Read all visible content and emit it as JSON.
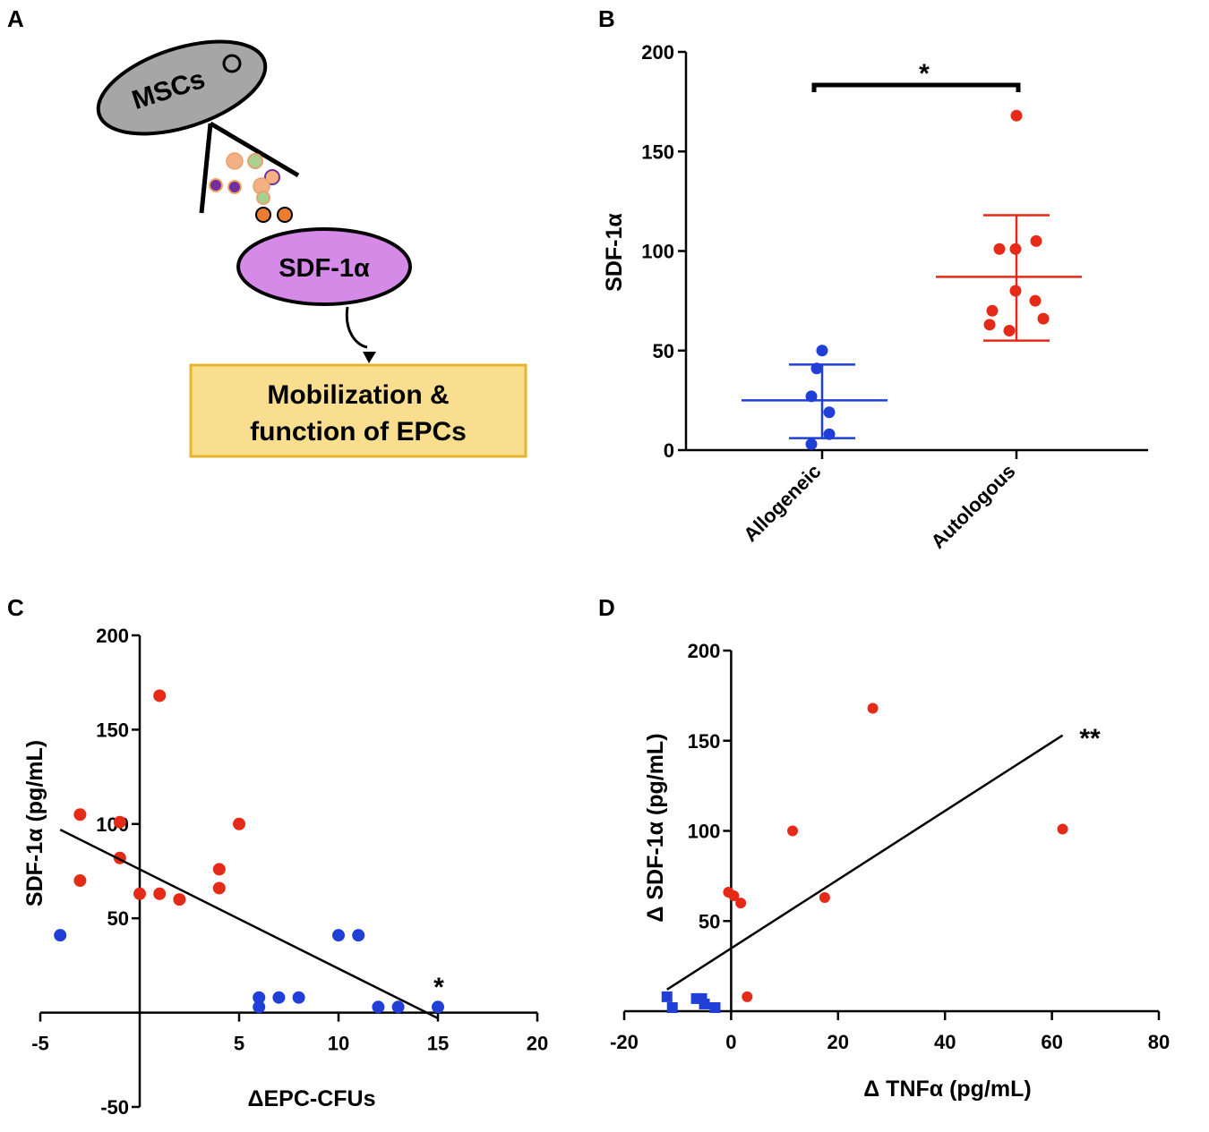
{
  "panels": {
    "a": {
      "letter": "A",
      "msc_label": "MSCs",
      "sdf_label": "SDF-1α",
      "box_line1": "Mobilization &",
      "box_line2": "function of EPCs",
      "colors": {
        "msc_fill": "#a6a6a6",
        "sdf_fill": "#d58ae8",
        "box_fill": "#f9de8f",
        "box_border": "#e5b52f"
      }
    },
    "b": {
      "letter": "B"
    },
    "c": {
      "letter": "C"
    },
    "d": {
      "letter": "D"
    }
  },
  "chart_data": [
    {
      "id": "B",
      "type": "scatter",
      "title": "",
      "xlabel": "",
      "ylabel": "SDF-1α",
      "categories": [
        "Allogeneic",
        "Autologous"
      ],
      "ylim": [
        0,
        200
      ],
      "yticks": [
        0,
        50,
        100,
        150,
        200
      ],
      "series": [
        {
          "name": "Allogeneic",
          "color": "#1f3fd6",
          "values": [
            50,
            41,
            27,
            19,
            8,
            3
          ],
          "mean": 25,
          "sd_low": 6,
          "sd_high": 43
        },
        {
          "name": "Autologous",
          "color": "#e52b17",
          "values": [
            168,
            105,
            101,
            101,
            80,
            75,
            70,
            66,
            63,
            60
          ],
          "mean": 87,
          "sd_low": 55,
          "sd_high": 118
        }
      ],
      "significance": "*"
    },
    {
      "id": "C",
      "type": "scatter",
      "title": "",
      "xlabel": "ΔEPC-CFUs",
      "ylabel": "SDF-1α (pg/mL)",
      "xlim": [
        -5,
        20
      ],
      "ylim": [
        -50,
        200
      ],
      "xticks": [
        -5,
        5,
        10,
        15,
        20
      ],
      "yticks": [
        -50,
        50,
        100,
        150,
        200
      ],
      "series": [
        {
          "name": "Autologous",
          "color": "#e52b17",
          "points": [
            [
              1,
              168
            ],
            [
              -3,
              105
            ],
            [
              -1,
              101
            ],
            [
              -3,
              70
            ],
            [
              -1,
              82
            ],
            [
              0,
              63
            ],
            [
              1,
              63
            ],
            [
              2,
              60
            ],
            [
              4,
              76
            ],
            [
              4,
              66
            ],
            [
              5,
              100
            ]
          ]
        },
        {
          "name": "Allogeneic",
          "color": "#1f3fd6",
          "points": [
            [
              -4,
              41
            ],
            [
              6,
              8
            ],
            [
              6,
              3
            ],
            [
              7,
              8
            ],
            [
              8,
              8
            ],
            [
              10,
              41
            ],
            [
              11,
              41
            ],
            [
              12,
              3
            ],
            [
              13,
              3
            ],
            [
              15,
              3
            ]
          ]
        }
      ],
      "regression": {
        "x0": -4,
        "y0": 97,
        "x1": 15,
        "y1": -3
      },
      "annotation": "*"
    },
    {
      "id": "D",
      "type": "scatter",
      "title": "",
      "xlabel": "Δ TNFα (pg/mL)",
      "ylabel": "Δ SDF-1α (pg/mL)",
      "xlim": [
        -20,
        80
      ],
      "ylim": [
        0,
        200
      ],
      "xticks": [
        -20,
        0,
        20,
        40,
        60,
        80
      ],
      "yticks": [
        50,
        100,
        150,
        200
      ],
      "series": [
        {
          "name": "Autologous",
          "color": "#e52b17",
          "points": [
            [
              26.5,
              168
            ],
            [
              62,
              101
            ],
            [
              11.5,
              100
            ],
            [
              17.5,
              63
            ],
            [
              -0.5,
              66
            ],
            [
              0.5,
              64
            ],
            [
              1.8,
              60
            ],
            [
              3,
              8
            ]
          ]
        },
        {
          "name": "Allogeneic",
          "color": "#1f3fd6",
          "points": [
            [
              -12,
              8
            ],
            [
              -11,
              2
            ],
            [
              -6.5,
              7
            ],
            [
              -5.5,
              7
            ],
            [
              -5,
              4
            ],
            [
              -3,
              2
            ]
          ]
        }
      ],
      "regression": {
        "x0": -12,
        "y0": 12,
        "x1": 62,
        "y1": 153
      },
      "annotation": "**"
    }
  ]
}
